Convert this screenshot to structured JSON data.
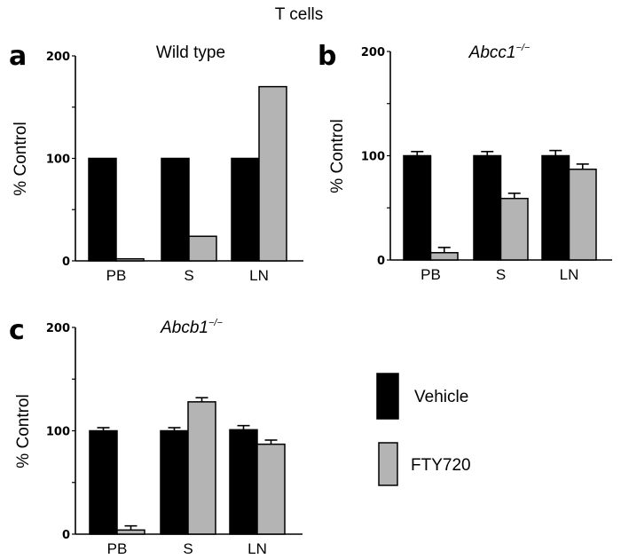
{
  "figure_title": "T cells",
  "colors": {
    "vehicle": "#000000",
    "fty720": "#b4b4b4"
  },
  "legend": {
    "position": "bottom-right",
    "items": [
      {
        "label": "Vehicle",
        "color": "#000000"
      },
      {
        "label": "FTY720",
        "color": "#b4b4b4"
      }
    ]
  },
  "chart_data": [
    {
      "type": "bar",
      "panel": "a",
      "title": "Wild type",
      "title_italic": false,
      "xlabel": "",
      "ylabel": "% Control",
      "ylim": [
        0,
        200
      ],
      "yticks": [
        0,
        50,
        100,
        150,
        200
      ],
      "ytick_labels": [
        "0",
        "",
        "100",
        "",
        "200"
      ],
      "categories": [
        "PB",
        "S",
        "LN"
      ],
      "series": [
        {
          "name": "Vehicle",
          "values": [
            100,
            100,
            100
          ],
          "errors": [
            0,
            0,
            0
          ]
        },
        {
          "name": "FTY720",
          "values": [
            2,
            24,
            170
          ],
          "errors": [
            0,
            0,
            0
          ]
        }
      ]
    },
    {
      "type": "bar",
      "panel": "b",
      "title": "Abcc1",
      "title_superscript": "−/−",
      "title_italic": true,
      "xlabel": "",
      "ylabel": "% Control",
      "ylim": [
        0,
        200
      ],
      "yticks": [
        0,
        50,
        100,
        150,
        200
      ],
      "ytick_labels": [
        "0",
        "",
        "100",
        "",
        "200"
      ],
      "categories": [
        "PB",
        "S",
        "LN"
      ],
      "series": [
        {
          "name": "Vehicle",
          "values": [
            100,
            100,
            100
          ],
          "errors": [
            4,
            4,
            5
          ]
        },
        {
          "name": "FTY720",
          "values": [
            7,
            59,
            87
          ],
          "errors": [
            5,
            5,
            5
          ]
        }
      ]
    },
    {
      "type": "bar",
      "panel": "c",
      "title": "Abcb1",
      "title_superscript": "−/−",
      "title_italic": true,
      "xlabel": "",
      "ylabel": "% Control",
      "ylim": [
        0,
        200
      ],
      "yticks": [
        0,
        50,
        100,
        150,
        200
      ],
      "ytick_labels": [
        "0",
        "",
        "100",
        "",
        "200"
      ],
      "categories": [
        "PB",
        "S",
        "LN"
      ],
      "series": [
        {
          "name": "Vehicle",
          "values": [
            100,
            100,
            101
          ],
          "errors": [
            3,
            3,
            4
          ]
        },
        {
          "name": "FTY720",
          "values": [
            4,
            128,
            87
          ],
          "errors": [
            4,
            4,
            4
          ]
        }
      ]
    }
  ]
}
